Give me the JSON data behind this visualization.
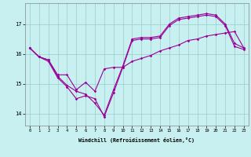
{
  "background_color": "#c8f0f0",
  "grid_color": "#99cccc",
  "line_color": "#990099",
  "xlim": [
    -0.5,
    23.5
  ],
  "ylim": [
    13.6,
    17.7
  ],
  "xticks": [
    0,
    1,
    2,
    3,
    4,
    5,
    6,
    7,
    8,
    9,
    10,
    11,
    12,
    13,
    14,
    15,
    16,
    17,
    18,
    19,
    20,
    21,
    22,
    23
  ],
  "yticks": [
    14,
    15,
    16,
    17
  ],
  "xlabel": "Windchill (Refroidissement éolien,°C)",
  "line1_x": [
    0,
    1,
    2,
    3,
    4,
    5,
    6,
    7,
    8,
    9,
    10,
    11,
    12,
    13,
    14,
    15,
    16,
    17,
    18,
    19,
    20,
    21,
    22,
    23
  ],
  "line1_y": [
    16.2,
    15.9,
    15.8,
    15.25,
    14.95,
    14.75,
    14.65,
    14.35,
    13.95,
    14.8,
    15.6,
    16.5,
    16.55,
    16.55,
    16.6,
    17.0,
    17.2,
    17.25,
    17.3,
    17.35,
    17.3,
    17.0,
    16.35,
    16.2
  ],
  "line2_x": [
    0,
    1,
    2,
    3,
    4,
    5,
    6,
    7,
    8,
    9,
    10,
    11,
    12,
    13,
    14,
    15,
    16,
    17,
    18,
    19,
    20,
    21,
    22,
    23
  ],
  "line2_y": [
    16.2,
    15.9,
    15.75,
    15.2,
    14.9,
    14.5,
    14.6,
    14.5,
    13.9,
    14.7,
    15.55,
    16.45,
    16.5,
    16.5,
    16.55,
    16.95,
    17.15,
    17.2,
    17.25,
    17.3,
    17.25,
    16.95,
    16.25,
    16.15
  ],
  "line3_x": [
    0,
    1,
    2,
    3,
    4,
    5,
    6,
    7,
    8,
    9,
    10,
    11,
    12,
    13,
    14,
    15,
    16,
    17,
    18,
    19,
    20,
    21,
    22,
    23
  ],
  "line3_y": [
    16.2,
    15.9,
    15.8,
    15.3,
    15.3,
    14.8,
    15.05,
    14.75,
    15.5,
    15.55,
    15.55,
    15.75,
    15.85,
    15.95,
    16.1,
    16.2,
    16.3,
    16.45,
    16.5,
    16.6,
    16.65,
    16.7,
    16.75,
    16.2
  ]
}
